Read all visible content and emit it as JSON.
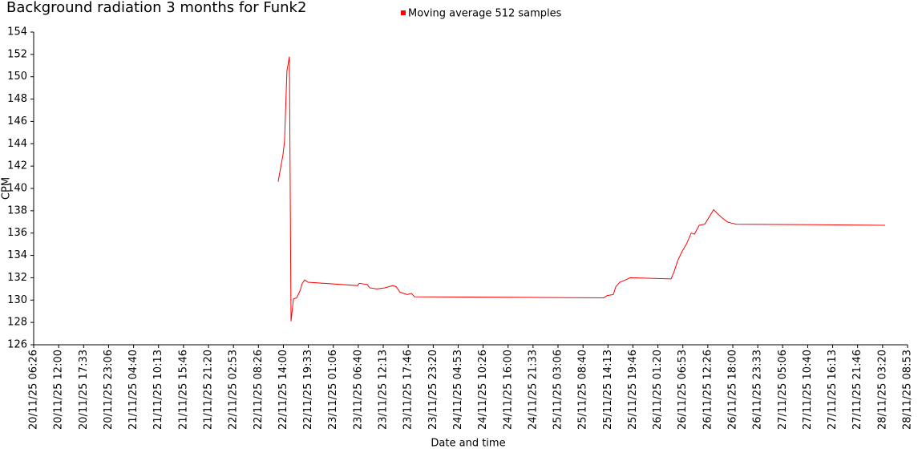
{
  "chart_data": {
    "type": "line",
    "title": "Background radiation 3 months for Funk2",
    "x_label": "Date and time",
    "y_label": "CPM",
    "x": [
      "22/11/25 12:50",
      "22/11/25 13:54",
      "22/11/25 14:15",
      "22/11/25 14:47",
      "22/11/25 15:20",
      "22/11/25 15:42",
      "22/11/25 16:14",
      "22/11/25 16:57",
      "22/11/25 17:40",
      "22/11/25 18:12",
      "22/11/25 18:44",
      "22/11/25 19:27",
      "23/11/25 06:31",
      "23/11/25 06:52",
      "23/11/25 08:39",
      "23/11/25 09:11",
      "23/11/25 10:47",
      "23/11/25 12:35",
      "23/11/25 14:22",
      "23/11/25 15:05",
      "23/11/25 15:58",
      "23/11/25 17:35",
      "23/11/25 18:29",
      "23/11/25 19:11",
      "25/11/25 13:17",
      "25/11/25 14:00",
      "25/11/25 15:25",
      "25/11/25 15:58",
      "25/11/25 16:51",
      "25/11/25 18:06",
      "25/11/25 19:10",
      "26/11/25 04:16",
      "26/11/25 04:59",
      "26/11/25 05:42",
      "26/11/25 06:46",
      "26/11/25 07:40",
      "26/11/25 08:44",
      "26/11/25 09:27",
      "26/11/25 10:31",
      "26/11/25 11:46",
      "26/11/25 12:50",
      "26/11/25 13:44",
      "26/11/25 14:27",
      "26/11/25 15:31",
      "26/11/25 16:46",
      "26/11/25 17:40",
      "26/11/25 18:44",
      "28/11/25 03:54"
    ],
    "series": [
      {
        "name": "Moving average 512 samples",
        "color": "#ff0000",
        "values": [
          140.6,
          143,
          144.2,
          150.5,
          151.8,
          128.1,
          130.1,
          130.2,
          130.8,
          131.5,
          131.8,
          131.6,
          131.3,
          131.5,
          131.4,
          131.1,
          131.0,
          131.1,
          131.3,
          131.2,
          130.7,
          130.5,
          130.6,
          130.3,
          130.2,
          130.4,
          130.5,
          131.2,
          131.6,
          131.8,
          132.0,
          131.9,
          132.6,
          133.5,
          134.4,
          135.0,
          136.0,
          135.9,
          136.7,
          136.8,
          137.5,
          138.1,
          137.8,
          137.4,
          137.0,
          136.9,
          136.8,
          136.7
        ]
      }
    ],
    "xlim": [
      "20/11/25 06:26",
      "28/11/25 08:53"
    ],
    "xticks": [
      "20/11/25 06:26",
      "20/11/25 12:00",
      "20/11/25 17:33",
      "20/11/25 23:06",
      "21/11/25 04:40",
      "21/11/25 10:13",
      "21/11/25 15:46",
      "21/11/25 21:20",
      "22/11/25 02:53",
      "22/11/25 08:26",
      "22/11/25 14:00",
      "22/11/25 19:33",
      "23/11/25 01:06",
      "23/11/25 06:40",
      "23/11/25 12:13",
      "23/11/25 17:46",
      "23/11/25 23:20",
      "24/11/25 04:53",
      "24/11/25 10:26",
      "24/11/25 16:00",
      "24/11/25 21:33",
      "25/11/25 03:06",
      "25/11/25 08:40",
      "25/11/25 14:13",
      "25/11/25 19:46",
      "26/11/25 01:20",
      "26/11/25 06:53",
      "26/11/25 12:26",
      "26/11/25 18:00",
      "26/11/25 23:33",
      "27/11/25 05:06",
      "27/11/25 10:40",
      "27/11/25 16:13",
      "27/11/25 21:46",
      "28/11/25 03:20",
      "28/11/25 08:53"
    ],
    "ylim": [
      126,
      154
    ],
    "yticks": [
      126,
      128,
      130,
      132,
      134,
      136,
      138,
      140,
      142,
      144,
      146,
      148,
      150,
      152,
      154
    ],
    "grid": false
  }
}
